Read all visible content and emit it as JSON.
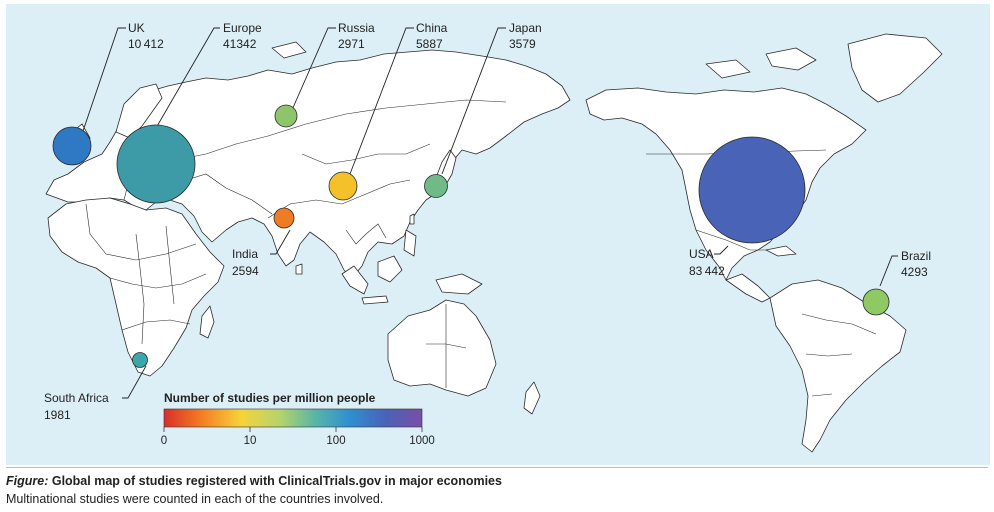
{
  "colors": {
    "ocean": "#dcefF7",
    "land": "#ffffff",
    "scale": [
      "#d7302a",
      "#f37a23",
      "#f6c22a",
      "#b4d46b",
      "#5cb6a5",
      "#2f8fd1",
      "#4a62b8",
      "#7a4ea6"
    ]
  },
  "markers": [
    {
      "id": "uk",
      "name": "UK",
      "value": "10 412",
      "v": 10412,
      "color": "#2f78c4"
    },
    {
      "id": "europe",
      "name": "Europe",
      "value": "41342",
      "v": 41342,
      "color": "#3c9ba6"
    },
    {
      "id": "russia",
      "name": "Russia",
      "value": "2971",
      "v": 2971,
      "color": "#8ec46a"
    },
    {
      "id": "china",
      "name": "China",
      "value": "5887",
      "v": 5887,
      "color": "#f5c12a"
    },
    {
      "id": "japan",
      "name": "Japan",
      "value": "3579",
      "v": 3579,
      "color": "#6fba86"
    },
    {
      "id": "india",
      "name": "India",
      "value": "2594",
      "v": 2594,
      "color": "#ef7b25"
    },
    {
      "id": "south_africa",
      "name": "South Africa",
      "value": "1981",
      "v": 1981,
      "color": "#3aa8a8"
    },
    {
      "id": "usa",
      "name": "USA",
      "value": "83 442",
      "v": 83442,
      "color": "#4963b7"
    },
    {
      "id": "brazil",
      "name": "Brazil",
      "value": "4293",
      "v": 4293,
      "color": "#8fc964"
    }
  ],
  "legend": {
    "title": "Number of studies per million people",
    "ticks": [
      "0",
      "10",
      "100",
      "1000"
    ]
  },
  "caption": {
    "lead": "Figure:",
    "title": "Global map of studies registered with ClinicalTrials.gov in major economies",
    "note": "Multinational studies were counted in each of the countries involved."
  }
}
